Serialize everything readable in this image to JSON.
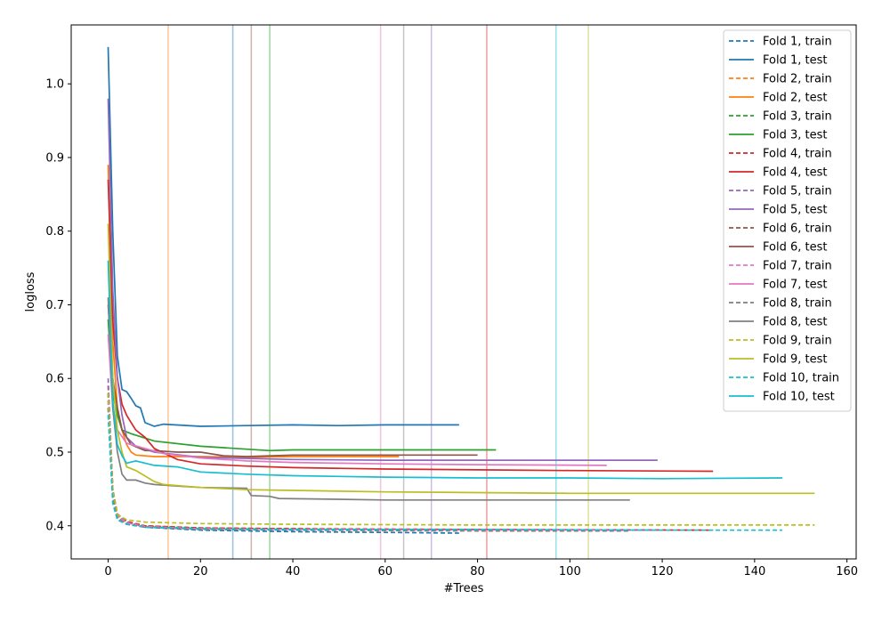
{
  "chart_data": {
    "type": "line",
    "xlabel": "#Trees",
    "ylabel": "logloss",
    "xlim": [
      -8,
      162
    ],
    "ylim": [
      0.355,
      1.08
    ],
    "xticks": [
      0,
      20,
      40,
      60,
      80,
      100,
      120,
      140,
      160
    ],
    "yticks": [
      0.4,
      0.5,
      0.6,
      0.7,
      0.8,
      0.9,
      1.0
    ],
    "grid": false,
    "legend_position": "upper-right",
    "series": [
      {
        "name": "Fold 1, train",
        "color": "#1f77b4",
        "style": "dashed",
        "points": [
          [
            0,
            0.58
          ],
          [
            1,
            0.45
          ],
          [
            2,
            0.415
          ],
          [
            4,
            0.405
          ],
          [
            8,
            0.398
          ],
          [
            20,
            0.394
          ],
          [
            40,
            0.392
          ],
          [
            60,
            0.391
          ],
          [
            76,
            0.39
          ]
        ]
      },
      {
        "name": "Fold 1, test",
        "color": "#1f77b4",
        "style": "solid",
        "points": [
          [
            0,
            1.05
          ],
          [
            1,
            0.8
          ],
          [
            2,
            0.63
          ],
          [
            3,
            0.585
          ],
          [
            4,
            0.582
          ],
          [
            5,
            0.573
          ],
          [
            6,
            0.563
          ],
          [
            7,
            0.56
          ],
          [
            8,
            0.54
          ],
          [
            10,
            0.535
          ],
          [
            12,
            0.538
          ],
          [
            20,
            0.535
          ],
          [
            30,
            0.536
          ],
          [
            40,
            0.537
          ],
          [
            50,
            0.536
          ],
          [
            60,
            0.537
          ],
          [
            70,
            0.537
          ],
          [
            76,
            0.537
          ]
        ]
      },
      {
        "name": "Fold 2, train",
        "color": "#ff7f0e",
        "style": "dashed",
        "points": [
          [
            0,
            0.57
          ],
          [
            1,
            0.44
          ],
          [
            2,
            0.41
          ],
          [
            4,
            0.403
          ],
          [
            8,
            0.399
          ],
          [
            20,
            0.396
          ],
          [
            40,
            0.395
          ],
          [
            63,
            0.394
          ]
        ]
      },
      {
        "name": "Fold 2, test",
        "color": "#ff7f0e",
        "style": "solid",
        "points": [
          [
            0,
            0.89
          ],
          [
            1,
            0.65
          ],
          [
            2,
            0.56
          ],
          [
            3,
            0.53
          ],
          [
            4,
            0.51
          ],
          [
            5,
            0.5
          ],
          [
            6,
            0.496
          ],
          [
            10,
            0.494
          ],
          [
            20,
            0.494
          ],
          [
            30,
            0.493
          ],
          [
            40,
            0.494
          ],
          [
            50,
            0.494
          ],
          [
            63,
            0.494
          ]
        ]
      },
      {
        "name": "Fold 3, train",
        "color": "#2ca02c",
        "style": "dashed",
        "points": [
          [
            0,
            0.56
          ],
          [
            1,
            0.44
          ],
          [
            2,
            0.412
          ],
          [
            4,
            0.404
          ],
          [
            8,
            0.4
          ],
          [
            20,
            0.397
          ],
          [
            40,
            0.396
          ],
          [
            60,
            0.395
          ],
          [
            84,
            0.394
          ]
        ]
      },
      {
        "name": "Fold 3, test",
        "color": "#2ca02c",
        "style": "solid",
        "points": [
          [
            0,
            0.68
          ],
          [
            1,
            0.58
          ],
          [
            2,
            0.55
          ],
          [
            3,
            0.53
          ],
          [
            5,
            0.525
          ],
          [
            10,
            0.515
          ],
          [
            20,
            0.508
          ],
          [
            25,
            0.506
          ],
          [
            30,
            0.504
          ],
          [
            35,
            0.502
          ],
          [
            40,
            0.503
          ],
          [
            60,
            0.503
          ],
          [
            84,
            0.503
          ]
        ]
      },
      {
        "name": "Fold 4, train",
        "color": "#d62728",
        "style": "dashed",
        "points": [
          [
            0,
            0.59
          ],
          [
            1,
            0.45
          ],
          [
            2,
            0.416
          ],
          [
            4,
            0.406
          ],
          [
            8,
            0.4
          ],
          [
            20,
            0.397
          ],
          [
            40,
            0.396
          ],
          [
            80,
            0.395
          ],
          [
            131,
            0.394
          ]
        ]
      },
      {
        "name": "Fold 4, test",
        "color": "#d62728",
        "style": "solid",
        "points": [
          [
            0,
            0.87
          ],
          [
            1,
            0.68
          ],
          [
            2,
            0.6
          ],
          [
            3,
            0.565
          ],
          [
            4,
            0.55
          ],
          [
            5,
            0.54
          ],
          [
            6,
            0.53
          ],
          [
            8,
            0.52
          ],
          [
            10,
            0.505
          ],
          [
            15,
            0.49
          ],
          [
            20,
            0.484
          ],
          [
            30,
            0.481
          ],
          [
            40,
            0.479
          ],
          [
            60,
            0.477
          ],
          [
            80,
            0.476
          ],
          [
            100,
            0.475
          ],
          [
            131,
            0.474
          ]
        ]
      },
      {
        "name": "Fold 5, train",
        "color": "#9467bd",
        "style": "dashed",
        "points": [
          [
            0,
            0.6
          ],
          [
            1,
            0.45
          ],
          [
            2,
            0.414
          ],
          [
            4,
            0.405
          ],
          [
            8,
            0.399
          ],
          [
            20,
            0.396
          ],
          [
            40,
            0.395
          ],
          [
            80,
            0.394
          ],
          [
            119,
            0.394
          ]
        ]
      },
      {
        "name": "Fold 5, test",
        "color": "#9467bd",
        "style": "solid",
        "points": [
          [
            0,
            0.98
          ],
          [
            1,
            0.72
          ],
          [
            2,
            0.6
          ],
          [
            3,
            0.55
          ],
          [
            4,
            0.52
          ],
          [
            6,
            0.508
          ],
          [
            10,
            0.5
          ],
          [
            20,
            0.493
          ],
          [
            40,
            0.49
          ],
          [
            60,
            0.489
          ],
          [
            80,
            0.489
          ],
          [
            100,
            0.489
          ],
          [
            119,
            0.489
          ]
        ]
      },
      {
        "name": "Fold 6, train",
        "color": "#8c564b",
        "style": "dashed",
        "points": [
          [
            0,
            0.58
          ],
          [
            1,
            0.44
          ],
          [
            2,
            0.412
          ],
          [
            4,
            0.404
          ],
          [
            8,
            0.399
          ],
          [
            20,
            0.396
          ],
          [
            40,
            0.395
          ],
          [
            80,
            0.394
          ]
        ]
      },
      {
        "name": "Fold 6, test",
        "color": "#8c564b",
        "style": "solid",
        "points": [
          [
            0,
            0.7
          ],
          [
            1,
            0.6
          ],
          [
            2,
            0.56
          ],
          [
            3,
            0.53
          ],
          [
            5,
            0.51
          ],
          [
            8,
            0.502
          ],
          [
            10,
            0.502
          ],
          [
            15,
            0.5
          ],
          [
            20,
            0.5
          ],
          [
            25,
            0.495
          ],
          [
            30,
            0.494
          ],
          [
            40,
            0.496
          ],
          [
            50,
            0.496
          ],
          [
            60,
            0.496
          ],
          [
            70,
            0.496
          ],
          [
            80,
            0.496
          ]
        ]
      },
      {
        "name": "Fold 7, train",
        "color": "#e377c2",
        "style": "dashed",
        "points": [
          [
            0,
            0.57
          ],
          [
            1,
            0.44
          ],
          [
            2,
            0.413
          ],
          [
            4,
            0.404
          ],
          [
            8,
            0.399
          ],
          [
            20,
            0.396
          ],
          [
            40,
            0.395
          ],
          [
            80,
            0.394
          ],
          [
            108,
            0.394
          ]
        ]
      },
      {
        "name": "Fold 7, test",
        "color": "#e377c2",
        "style": "solid",
        "points": [
          [
            0,
            0.66
          ],
          [
            1,
            0.56
          ],
          [
            2,
            0.53
          ],
          [
            4,
            0.512
          ],
          [
            8,
            0.505
          ],
          [
            12,
            0.498
          ],
          [
            20,
            0.492
          ],
          [
            30,
            0.488
          ],
          [
            40,
            0.486
          ],
          [
            60,
            0.484
          ],
          [
            80,
            0.483
          ],
          [
            108,
            0.482
          ]
        ]
      },
      {
        "name": "Fold 8, train",
        "color": "#7f7f7f",
        "style": "dashed",
        "points": [
          [
            0,
            0.56
          ],
          [
            1,
            0.44
          ],
          [
            2,
            0.41
          ],
          [
            4,
            0.402
          ],
          [
            8,
            0.398
          ],
          [
            20,
            0.395
          ],
          [
            40,
            0.394
          ],
          [
            80,
            0.393
          ],
          [
            113,
            0.393
          ]
        ]
      },
      {
        "name": "Fold 8, test",
        "color": "#7f7f7f",
        "style": "solid",
        "points": [
          [
            0,
            0.71
          ],
          [
            1,
            0.56
          ],
          [
            2,
            0.5
          ],
          [
            3,
            0.47
          ],
          [
            4,
            0.462
          ],
          [
            6,
            0.462
          ],
          [
            8,
            0.458
          ],
          [
            10,
            0.456
          ],
          [
            15,
            0.454
          ],
          [
            20,
            0.452
          ],
          [
            30,
            0.451
          ],
          [
            31,
            0.441
          ],
          [
            35,
            0.44
          ],
          [
            37,
            0.437
          ],
          [
            50,
            0.436
          ],
          [
            60,
            0.435
          ],
          [
            80,
            0.435
          ],
          [
            113,
            0.435
          ]
        ]
      },
      {
        "name": "Fold 9, train",
        "color": "#bcbd22",
        "style": "dashed",
        "points": [
          [
            0,
            0.58
          ],
          [
            1,
            0.45
          ],
          [
            2,
            0.415
          ],
          [
            4,
            0.408
          ],
          [
            8,
            0.405
          ],
          [
            20,
            0.403
          ],
          [
            40,
            0.402
          ],
          [
            80,
            0.401
          ],
          [
            120,
            0.401
          ],
          [
            153,
            0.401
          ]
        ]
      },
      {
        "name": "Fold 9, test",
        "color": "#bcbd22",
        "style": "solid",
        "points": [
          [
            0,
            0.81
          ],
          [
            1,
            0.6
          ],
          [
            2,
            0.53
          ],
          [
            3,
            0.5
          ],
          [
            4,
            0.48
          ],
          [
            6,
            0.475
          ],
          [
            10,
            0.46
          ],
          [
            12,
            0.456
          ],
          [
            20,
            0.452
          ],
          [
            30,
            0.449
          ],
          [
            40,
            0.448
          ],
          [
            60,
            0.446
          ],
          [
            80,
            0.445
          ],
          [
            100,
            0.444
          ],
          [
            120,
            0.444
          ],
          [
            153,
            0.444
          ]
        ]
      },
      {
        "name": "Fold 10, train",
        "color": "#17becf",
        "style": "dashed",
        "points": [
          [
            0,
            0.55
          ],
          [
            1,
            0.43
          ],
          [
            2,
            0.408
          ],
          [
            4,
            0.402
          ],
          [
            8,
            0.398
          ],
          [
            20,
            0.396
          ],
          [
            40,
            0.395
          ],
          [
            80,
            0.395
          ],
          [
            120,
            0.394
          ],
          [
            146,
            0.394
          ]
        ]
      },
      {
        "name": "Fold 10, test",
        "color": "#17becf",
        "style": "solid",
        "points": [
          [
            0,
            0.76
          ],
          [
            1,
            0.57
          ],
          [
            2,
            0.51
          ],
          [
            3,
            0.495
          ],
          [
            4,
            0.485
          ],
          [
            6,
            0.488
          ],
          [
            10,
            0.482
          ],
          [
            15,
            0.48
          ],
          [
            20,
            0.473
          ],
          [
            30,
            0.47
          ],
          [
            40,
            0.468
          ],
          [
            60,
            0.466
          ],
          [
            80,
            0.465
          ],
          [
            100,
            0.465
          ],
          [
            120,
            0.464
          ],
          [
            146,
            0.465
          ]
        ]
      }
    ],
    "vlines": [
      {
        "x": 13,
        "color": "#ff7f0e"
      },
      {
        "x": 27,
        "color": "#1f77b4"
      },
      {
        "x": 31,
        "color": "#8c564b"
      },
      {
        "x": 35,
        "color": "#2ca02c"
      },
      {
        "x": 59,
        "color": "#e377c2"
      },
      {
        "x": 64,
        "color": "#7f7f7f"
      },
      {
        "x": 70,
        "color": "#9467bd"
      },
      {
        "x": 82,
        "color": "#d62728"
      },
      {
        "x": 97,
        "color": "#17becf"
      },
      {
        "x": 104,
        "color": "#bcbd22"
      }
    ]
  }
}
